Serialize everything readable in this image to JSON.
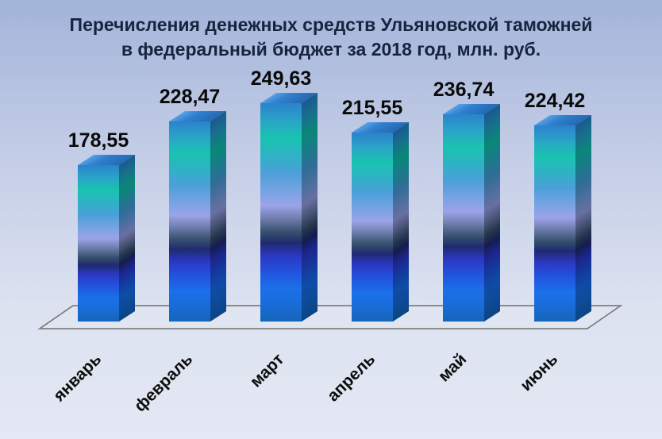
{
  "title": {
    "line1": "Перечисления денежных средств Ульяновской таможней",
    "line2": "в федеральный бюджет за 2018 год, млн. руб."
  },
  "chart_data": {
    "type": "bar",
    "style": "3d-column",
    "title": "Перечисления денежных средств Ульяновской таможней в федеральный бюджет за 2018 год, млн. руб.",
    "unit": "млн. руб.",
    "year": "2018",
    "categories": [
      "январь",
      "февраль",
      "март",
      "апрель",
      "май",
      "июнь"
    ],
    "values": [
      178.55,
      228.47,
      249.63,
      215.55,
      236.74,
      224.42
    ],
    "value_labels": [
      "178,55",
      "228,47",
      "249,63",
      "215,55",
      "236,74",
      "224,42"
    ],
    "xlabel": "",
    "ylabel": "",
    "ylim": [
      0,
      260
    ],
    "grid": false,
    "legend": false,
    "value_labels_shown": true,
    "category_label_rotation_deg": -45
  },
  "colors": {
    "background_top": "#a3b4da",
    "background_bottom": "#e4e8f4",
    "title_text": "#17243e",
    "label_text": "#0a0a0a",
    "floor_outline": "#7f7f7f",
    "bar_top_face": [
      "#5aa2e4",
      "#2e80d0",
      "#2668b0"
    ],
    "bar_gradient": [
      [
        "#2b82cc",
        0
      ],
      [
        "#2aa4c8",
        8
      ],
      [
        "#19c3af",
        16
      ],
      [
        "#2fb2c6",
        24
      ],
      [
        "#4c9fd9",
        32
      ],
      [
        "#7ba3e4",
        41
      ],
      [
        "#9ba3e8",
        47
      ],
      [
        "#6d7cab",
        53
      ],
      [
        "#36506e",
        59
      ],
      [
        "#202a70",
        64
      ],
      [
        "#2b38c4",
        70
      ],
      [
        "#2156e0",
        78
      ],
      [
        "#1b70ea",
        85
      ],
      [
        "#1a6cd8",
        92
      ],
      [
        "#1565b8",
        100
      ]
    ]
  }
}
